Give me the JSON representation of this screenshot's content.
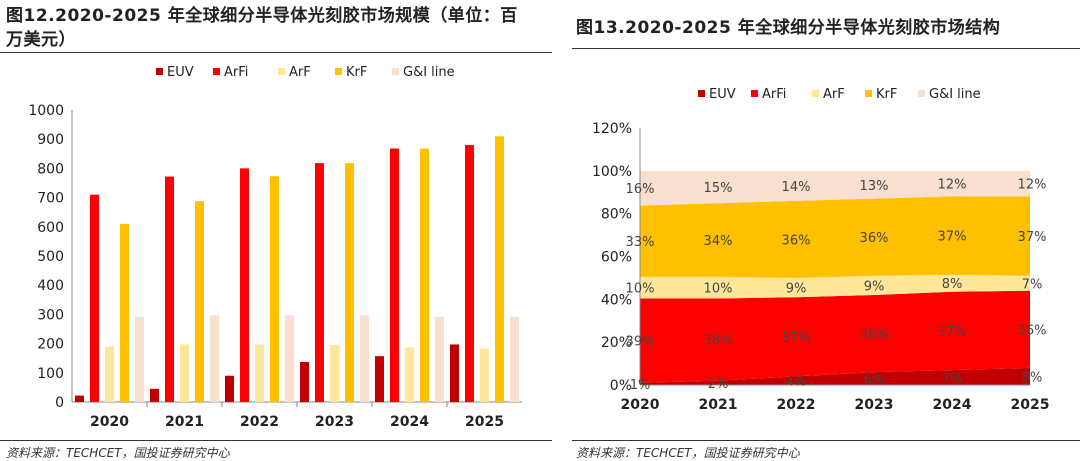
{
  "left": {
    "title": "图12.2020-2025 年全球细分半导体光刻胶市场规模（单位：百万美元）",
    "title_line1": "图12.2020-2025 年全球细分半导体光刻胶市场规模（单位：百",
    "title_line2": "万美元）",
    "source": "资料来源：TECHCET，国投证券研究中心"
  },
  "right": {
    "title": "图13.2020-2025 年全球细分半导体光刻胶市场结构",
    "source": "资料来源：TECHCET，国投证券研究中心"
  },
  "colors": {
    "EUV": "#c00000",
    "ArFi": "#ff0000",
    "ArF": "#ffe699",
    "KrF": "#ffc000",
    "G&I line": "#f8dfcf"
  },
  "chart_data": [
    {
      "type": "bar",
      "title": "图12.2020-2025 年全球细分半导体光刻胶市场规模（单位：百万美元）",
      "categories": [
        "2020",
        "2021",
        "2022",
        "2023",
        "2024",
        "2025"
      ],
      "series": [
        {
          "name": "EUV",
          "values": [
            22,
            45,
            90,
            137,
            157,
            197
          ]
        },
        {
          "name": "ArFi",
          "values": [
            710,
            772,
            800,
            818,
            868,
            880
          ]
        },
        {
          "name": "ArF",
          "values": [
            190,
            197,
            197,
            195,
            187,
            183
          ]
        },
        {
          "name": "KrF",
          "values": [
            610,
            688,
            773,
            818,
            868,
            910
          ]
        },
        {
          "name": "G&I line",
          "values": [
            292,
            297,
            297,
            297,
            292,
            292
          ]
        }
      ],
      "ylim": [
        0,
        1000
      ],
      "yticks": [
        0,
        100,
        200,
        300,
        400,
        500,
        600,
        700,
        800,
        900,
        1000
      ],
      "legend": "top",
      "xlabel": "",
      "ylabel": ""
    },
    {
      "type": "area",
      "stacked": true,
      "title": "图13.2020-2025 年全球细分半导体光刻胶市场结构",
      "x": [
        "2020",
        "2021",
        "2022",
        "2023",
        "2024",
        "2025"
      ],
      "series": [
        {
          "name": "EUV",
          "values": [
            1,
            2,
            4,
            6,
            7,
            8
          ],
          "labels": [
            "1%",
            "2%",
            "4%",
            "6%",
            "7%",
            "8%"
          ]
        },
        {
          "name": "ArFi",
          "values": [
            39,
            38,
            37,
            36,
            37,
            36
          ],
          "labels": [
            "39%",
            "38%",
            "37%",
            "36%",
            "37%",
            "36%"
          ]
        },
        {
          "name": "ArF",
          "values": [
            10,
            10,
            9,
            9,
            8,
            7
          ],
          "labels": [
            "10%",
            "10%",
            "9%",
            "9%",
            "8%",
            "7%"
          ]
        },
        {
          "name": "KrF",
          "values": [
            33,
            34,
            36,
            36,
            37,
            37
          ],
          "labels": [
            "33%",
            "34%",
            "36%",
            "36%",
            "37%",
            "37%"
          ]
        },
        {
          "name": "G&I line",
          "values": [
            16,
            15,
            14,
            13,
            12,
            12
          ],
          "labels": [
            "16%",
            "15%",
            "14%",
            "13%",
            "12%",
            "12%"
          ]
        }
      ],
      "ylim": [
        0,
        120
      ],
      "yticks": [
        "0%",
        "20%",
        "40%",
        "60%",
        "80%",
        "100%",
        "120%"
      ],
      "ytick_values": [
        0,
        20,
        40,
        60,
        80,
        100,
        120
      ],
      "legend": "top",
      "xlabel": "",
      "ylabel": ""
    }
  ]
}
